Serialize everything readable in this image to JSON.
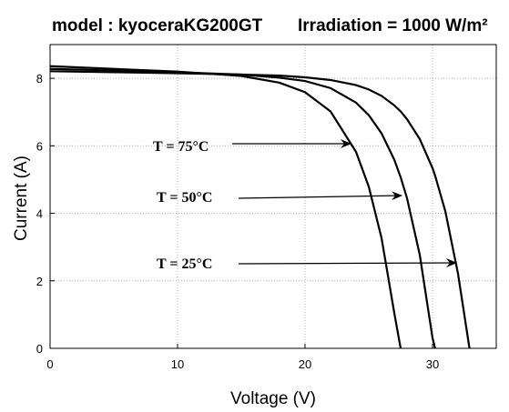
{
  "chart_data": {
    "type": "line",
    "title": "model : kyoceraKG200GT",
    "subtitle": "Irradiation = 1000 W/m²",
    "x_label": "Voltage (V)",
    "y_label": "Current (A)",
    "x": [
      0,
      5,
      10,
      15,
      18,
      20,
      22,
      24,
      25,
      26,
      27,
      27.5,
      28,
      29,
      30,
      30.2,
      31,
      32,
      32.9
    ],
    "series": [
      {
        "name": "T = 75°C",
        "color": "#000000",
        "values": [
          8.36,
          8.28,
          8.2,
          8.07,
          7.87,
          7.59,
          7.02,
          5.82,
          4.79,
          3.27,
          1.05,
          0,
          null,
          null,
          null,
          null,
          null,
          null,
          null
        ]
      },
      {
        "name": "T = 50°C",
        "color": "#000000",
        "values": [
          8.28,
          8.23,
          8.18,
          8.11,
          8.02,
          7.92,
          7.71,
          7.28,
          6.91,
          6.37,
          5.59,
          5.07,
          4.45,
          2.77,
          0.31,
          0,
          null,
          null,
          null
        ]
      },
      {
        "name": "T = 25°C",
        "color": "#000000",
        "values": [
          8.21,
          8.18,
          8.15,
          8.11,
          8.08,
          8.03,
          7.95,
          7.8,
          7.67,
          7.48,
          7.2,
          7.02,
          6.79,
          6.2,
          5.34,
          5.12,
          4.07,
          2.21,
          0
        ]
      }
    ],
    "xlim": [
      0,
      35
    ],
    "ylim": [
      0,
      9
    ],
    "xticks": [
      0,
      10,
      20,
      30
    ],
    "yticks": [
      0,
      2,
      4,
      6,
      8
    ],
    "grid": true
  }
}
